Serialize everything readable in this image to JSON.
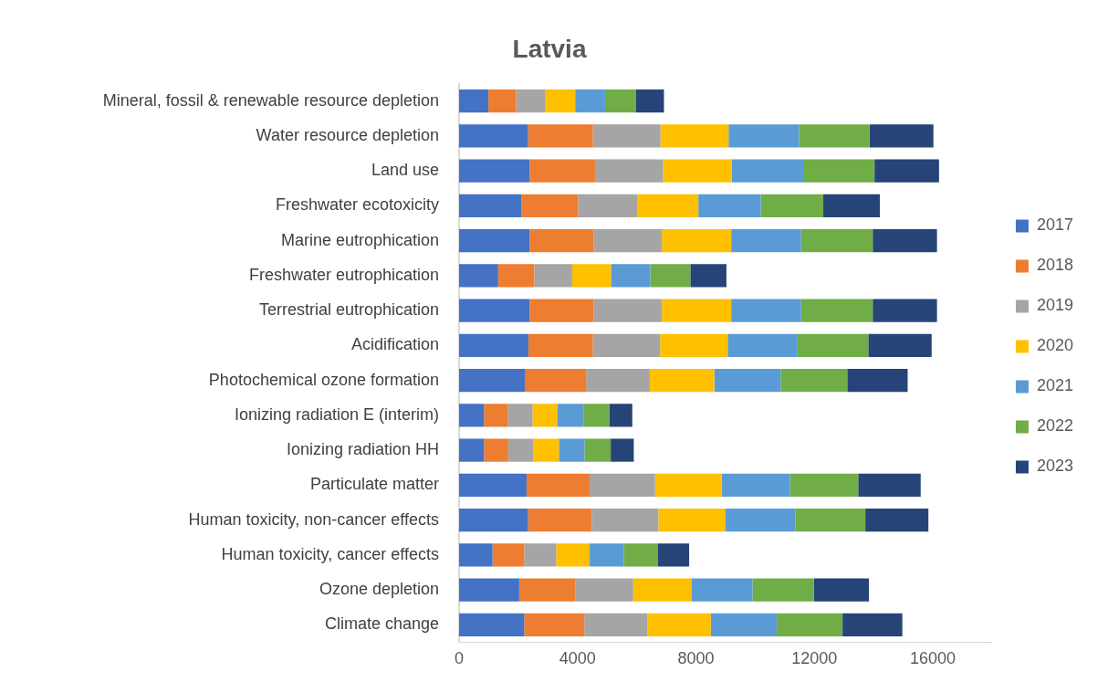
{
  "chart_data": {
    "type": "bar",
    "orientation": "horizontal",
    "stacked": true,
    "title": "Latvia",
    "categories": [
      "Mineral, fossil & renewable resource depletion",
      "Water resource depletion",
      "Land use",
      "Freshwater ecotoxicity",
      "Marine eutrophication",
      "Freshwater eutrophication",
      "Terrestrial eutrophication",
      "Acidification",
      "Photochemical ozone formation",
      "Ionizing radiation E (interim)",
      "Ionizing radiation HH",
      "Particulate matter",
      "Human toxicity, non-cancer effects",
      "Human toxicity, cancer effects",
      "Ozone depletion",
      "Climate change"
    ],
    "series": [
      {
        "name": "2017",
        "color": "#4472c4",
        "values": [
          990,
          2330,
          2380,
          2100,
          2380,
          1320,
          2380,
          2340,
          2220,
          840,
          840,
          2280,
          2330,
          1130,
          2030,
          2200
        ]
      },
      {
        "name": "2018",
        "color": "#ed7d31",
        "values": [
          940,
          2190,
          2210,
          1920,
          2170,
          1220,
          2170,
          2180,
          2070,
          800,
          820,
          2130,
          2150,
          1070,
          1890,
          2030
        ]
      },
      {
        "name": "2019",
        "color": "#a5a5a5",
        "values": [
          990,
          2280,
          2300,
          2010,
          2300,
          1280,
          2300,
          2270,
          2150,
          840,
          840,
          2210,
          2250,
          1080,
          1960,
          2130
        ]
      },
      {
        "name": "2020",
        "color": "#ffc000",
        "values": [
          1000,
          2300,
          2320,
          2050,
          2340,
          1310,
          2340,
          2280,
          2180,
          850,
          870,
          2250,
          2270,
          1130,
          1980,
          2140
        ]
      },
      {
        "name": "2021",
        "color": "#5b9bd5",
        "values": [
          1010,
          2380,
          2410,
          2110,
          2360,
          1330,
          2360,
          2360,
          2240,
          870,
          870,
          2310,
          2360,
          1150,
          2050,
          2230
        ]
      },
      {
        "name": "2022",
        "color": "#70ad47",
        "values": [
          1050,
          2380,
          2410,
          2110,
          2420,
          1350,
          2420,
          2390,
          2250,
          870,
          880,
          2300,
          2360,
          1160,
          2070,
          2220
        ]
      },
      {
        "name": "2023",
        "color": "#264478",
        "values": [
          940,
          2160,
          2180,
          1910,
          2170,
          1220,
          2170,
          2140,
          2040,
          780,
          780,
          2110,
          2130,
          1050,
          1860,
          2020
        ]
      }
    ],
    "xlim": [
      0,
      18000
    ],
    "xticks": [
      0,
      4000,
      8000,
      12000,
      16000
    ],
    "grid": false,
    "legend": "right"
  }
}
